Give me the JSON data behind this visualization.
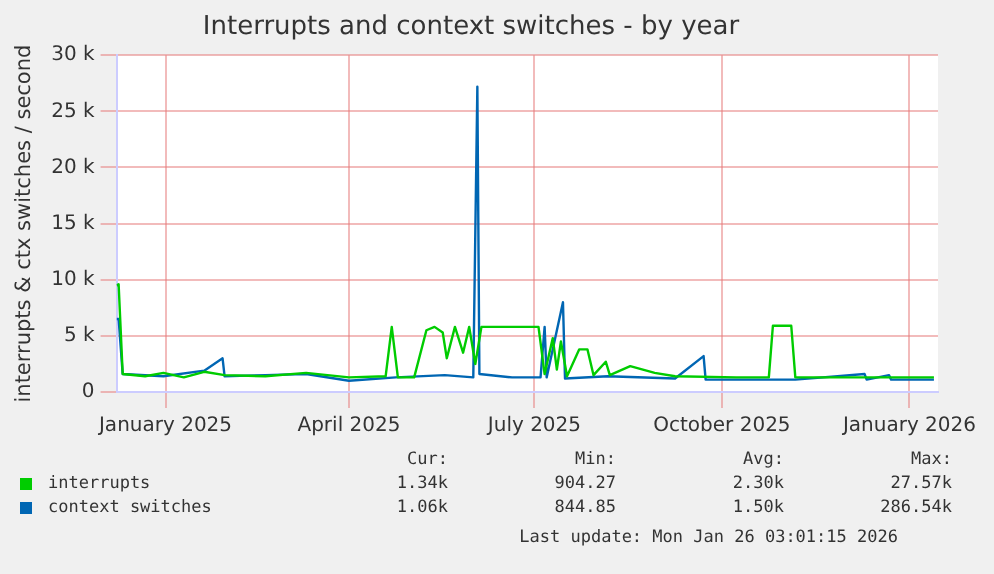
{
  "chart_data": {
    "type": "line",
    "title": "Interrupts and context switches - by year",
    "ylabel": "interrupts & ctx switches / second",
    "xlim": [
      "2024-12-22",
      "2026-01-29"
    ],
    "xticks": [
      {
        "value": "2025-01-15",
        "label": "January 2025"
      },
      {
        "value": "2025-04-15",
        "label": "April 2025"
      },
      {
        "value": "2025-07-15",
        "label": "July 2025"
      },
      {
        "value": "2025-10-15",
        "label": "October 2025"
      },
      {
        "value": "2026-01-15",
        "label": "January 2026"
      }
    ],
    "ylim": [
      0,
      30000
    ],
    "yticks": [
      0,
      {
        "value": 5000,
        "label": "5 k"
      },
      {
        "value": 10000,
        "label": "10 k"
      },
      {
        "value": 15000,
        "label": "15 k"
      },
      {
        "value": 20000,
        "label": "20 k"
      },
      {
        "value": 25000,
        "label": "25 k"
      },
      {
        "value": 30000,
        "label": "30 k"
      }
    ],
    "grid": true,
    "legend": "bottom",
    "marker": "none",
    "line_style": "solid",
    "series": [
      {
        "name": "interrupts",
        "color": "#00cc00",
        "x": [
          "2024-12-22",
          "2024-12-23",
          "2024-12-25",
          "2025-01-05",
          "2025-01-14",
          "2025-01-24",
          "2025-02-03",
          "2025-02-13",
          "2025-03-05",
          "2025-03-25",
          "2025-04-15",
          "2025-05-03",
          "2025-05-06",
          "2025-05-09",
          "2025-05-17",
          "2025-05-23",
          "2025-05-27",
          "2025-05-31",
          "2025-06-02",
          "2025-06-06",
          "2025-06-10",
          "2025-06-13",
          "2025-06-16",
          "2025-06-19",
          "2025-07-17",
          "2025-07-20",
          "2025-07-24",
          "2025-07-26",
          "2025-07-28",
          "2025-07-31",
          "2025-08-06",
          "2025-08-10",
          "2025-08-13",
          "2025-08-19",
          "2025-08-21",
          "2025-08-31",
          "2025-09-12",
          "2025-09-22",
          "2025-10-22",
          "2025-11-07",
          "2025-11-09",
          "2025-11-18",
          "2025-11-20",
          "2025-12-12",
          "2026-01-27"
        ],
        "values": [
          9500,
          9600,
          1600,
          1400,
          1700,
          1300,
          1800,
          1500,
          1400,
          1700,
          1300,
          1400,
          5800,
          1300,
          1300,
          5500,
          5800,
          5300,
          3000,
          5800,
          3500,
          5800,
          2500,
          5800,
          5800,
          1600,
          4800,
          2000,
          4500,
          1400,
          3800,
          3800,
          1500,
          2700,
          1500,
          2300,
          1700,
          1400,
          1300,
          1300,
          5900,
          5900,
          1300,
          1300,
          1300
        ]
      },
      {
        "name": "context switches",
        "color": "#0066b3",
        "x": [
          "2024-12-22",
          "2024-12-23",
          "2024-12-25",
          "2025-01-14",
          "2025-02-03",
          "2025-02-12",
          "2025-02-13",
          "2025-03-05",
          "2025-03-25",
          "2025-04-15",
          "2025-05-08",
          "2025-06-01",
          "2025-06-15",
          "2025-06-17",
          "2025-06-18",
          "2025-07-04",
          "2025-07-18",
          "2025-07-20",
          "2025-07-21",
          "2025-07-29",
          "2025-07-30",
          "2025-08-20",
          "2025-09-22",
          "2025-10-06",
          "2025-10-07",
          "2025-11-20",
          "2025-12-24",
          "2025-12-25",
          "2026-01-05",
          "2026-01-06",
          "2026-01-27"
        ],
        "values": [
          6500,
          6500,
          1600,
          1400,
          1900,
          3000,
          1400,
          1500,
          1600,
          1000,
          1300,
          1500,
          1300,
          27200,
          1600,
          1300,
          1300,
          5800,
          1300,
          8000,
          1200,
          1400,
          1200,
          3200,
          1100,
          1100,
          1600,
          1100,
          1500,
          1100,
          1100
        ]
      }
    ],
    "annotations": [
      "Cur:",
      "Min:",
      "Avg:",
      "Max:",
      "1.34k",
      "904.27",
      "2.30k",
      "27.57k",
      "1.06k",
      "844.85",
      "1.50k",
      "286.54k",
      "Last update: Mon Jan 26 03:01:15 2026"
    ]
  }
}
